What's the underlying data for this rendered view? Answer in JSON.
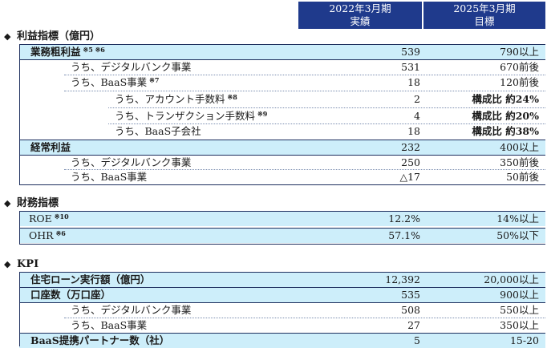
{
  "header": {
    "col1_line1": "2022年3月期",
    "col1_line2": "実績",
    "col2_line1": "2025年3月期",
    "col2_line2": "目標"
  },
  "sections": {
    "profit": "利益指標（億円）",
    "financial": "財務指標",
    "kpi": "KPI"
  },
  "profit_rows": [
    {
      "label": "業務粗利益",
      "note": "※5 ※6",
      "actual": "539",
      "target": "790以上"
    },
    {
      "label": "うち、デジタルバンク事業",
      "note": "",
      "actual": "531",
      "target": "670前後"
    },
    {
      "label": "うち、BaaS事業",
      "note": "※7",
      "actual": "18",
      "target": "120前後"
    },
    {
      "label": "うち、アカウント手数料",
      "note": "※8",
      "actual": "2",
      "target": "構成比 約24%"
    },
    {
      "label": "うち、トランザクション手数料",
      "note": "※9",
      "actual": "4",
      "target": "構成比 約20%"
    },
    {
      "label": "うち、BaaS子会社",
      "note": "",
      "actual": "18",
      "target": "構成比 約38%"
    },
    {
      "label": "経常利益",
      "note": "",
      "actual": "232",
      "target": "400以上"
    },
    {
      "label": "うち、デジタルバンク事業",
      "note": "",
      "actual": "250",
      "target": "350前後"
    },
    {
      "label": "うち、BaaS事業",
      "note": "",
      "actual": "△17",
      "target": "50前後"
    }
  ],
  "financial_rows": [
    {
      "label": "ROE",
      "note": "※10",
      "actual": "12.2%",
      "target": "14%以上"
    },
    {
      "label": "OHR",
      "note": "※6",
      "actual": "57.1%",
      "target": "50%以下"
    }
  ],
  "kpi_rows": [
    {
      "label": "住宅ローン実行額（億円）",
      "note": "",
      "actual": "12,392",
      "target": "20,000以上"
    },
    {
      "label": "口座数（万口座）",
      "note": "",
      "actual": "535",
      "target": "900以上"
    },
    {
      "label": "うち、デジタルバンク事業",
      "note": "",
      "actual": "508",
      "target": "550以上"
    },
    {
      "label": "うち、BaaS事業",
      "note": "",
      "actual": "27",
      "target": "350以上"
    },
    {
      "label": "BaaS提携パートナー数（社）",
      "note": "",
      "actual": "5",
      "target": "15-20"
    }
  ],
  "colors": {
    "header_bg": "#1f3a8c",
    "row_shade": "#cdeefa",
    "rule": "#1e2f5e"
  }
}
